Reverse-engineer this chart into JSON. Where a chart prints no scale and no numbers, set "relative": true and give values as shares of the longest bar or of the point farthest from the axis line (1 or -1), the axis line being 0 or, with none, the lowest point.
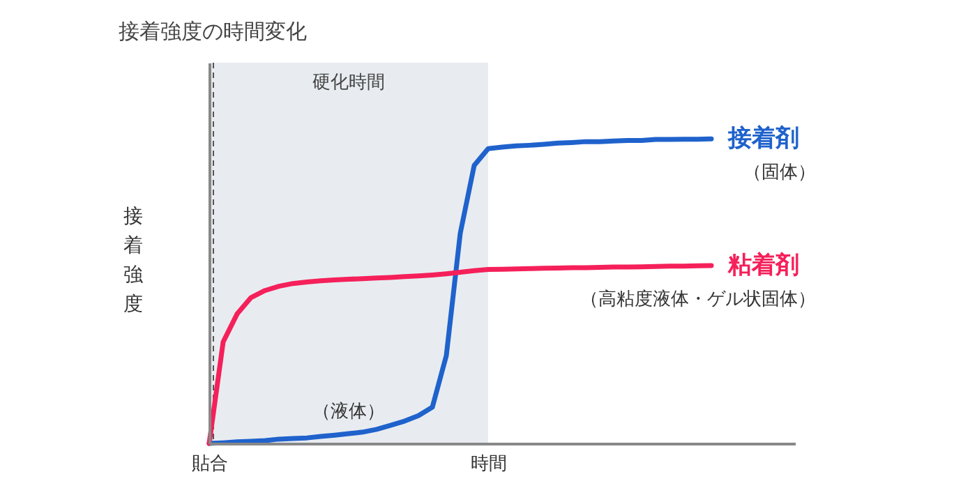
{
  "chart_data": {
    "type": "line",
    "title": "接着強度の時間変化",
    "ylabel": "接着強度",
    "relative": true,
    "categories": [
      "貼合",
      null,
      null,
      null,
      null,
      null,
      null,
      null,
      null,
      null,
      null,
      null,
      null,
      null,
      null,
      null,
      null,
      null,
      null,
      null,
      "時間",
      null,
      null,
      null,
      null,
      null,
      null,
      null,
      null,
      null,
      null,
      null,
      null,
      null,
      null,
      null,
      null,
      null,
      null,
      null,
      null,
      null,
      null
    ],
    "series": [
      {
        "name": "接着剤",
        "color": "#1f62cc",
        "values": [
          0,
          0.002,
          0.005,
          0.007,
          0.009,
          0.014,
          0.016,
          0.018,
          0.023,
          0.027,
          0.032,
          0.037,
          0.046,
          0.059,
          0.073,
          0.091,
          0.119,
          0.288,
          0.69,
          0.913,
          0.968,
          0.973,
          0.977,
          0.979,
          0.982,
          0.986,
          0.988,
          0.991,
          0.991,
          0.993,
          0.995,
          0.995,
          0.998,
          0.998,
          0.999,
          0.999,
          1,
          null,
          null,
          null,
          null,
          null,
          null
        ]
      },
      {
        "name": "粘着剤",
        "color": "#f5205a",
        "values": [
          0,
          0.333,
          0.425,
          0.479,
          0.502,
          0.516,
          0.525,
          0.53,
          0.534,
          0.537,
          0.539,
          0.541,
          0.543,
          0.545,
          0.548,
          0.55,
          0.553,
          0.557,
          0.562,
          0.567,
          0.571,
          0.572,
          0.573,
          0.574,
          0.575,
          0.576,
          0.577,
          0.577,
          0.578,
          0.579,
          0.579,
          0.58,
          0.581,
          0.582,
          0.582,
          0.583,
          0.584,
          null,
          null,
          null,
          null,
          null,
          null
        ]
      }
    ],
    "annotations": [
      {
        "text": "（液体）",
        "y": 0.032
      },
      "（固体）",
      "（高粘度液体・ゲル状固体）"
    ],
    "bands": [
      {
        "axis": "x",
        "from": "貼合",
        "to": "時間",
        "label": "硬化時間",
        "color": "#e8ecf0"
      }
    ],
    "ref_lines": [
      {
        "axis": "x",
        "value": "貼合",
        "color": "#555555",
        "line_style": "dashed"
      }
    ],
    "legend": false,
    "grid": false,
    "marker": "none",
    "line_style": "solid"
  }
}
